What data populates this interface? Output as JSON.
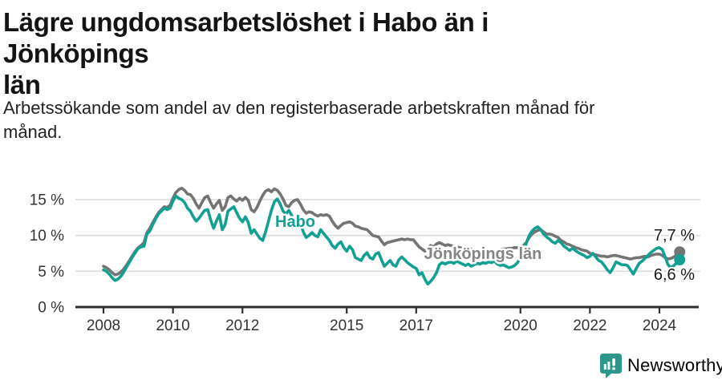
{
  "header": {
    "title": "Lägre ungdomsarbetslöshet i Habo än i Jönköpings län",
    "title_lines": [
      "Lägre ungdomsarbetslöshet i Habo än i Jönköpings",
      "län"
    ],
    "subtitle": "Arbetssökande som andel av den registerbaserade arbetskraften månad för månad.",
    "subtitle_lines": [
      "Arbetssökande som andel av den registerbaserade arbetskraften månad för",
      "månad."
    ]
  },
  "chart_data": {
    "type": "line",
    "x_unit": "month",
    "x_start": "2008-01",
    "x_end": "2024-08",
    "xticks": [
      2008,
      2010,
      2012,
      2015,
      2017,
      2020,
      2022,
      2024
    ],
    "xtick_labels": [
      "2008",
      "2010",
      "2012",
      "2015",
      "2017",
      "2020",
      "2022",
      "2024"
    ],
    "yticks": [
      0,
      5,
      10,
      15
    ],
    "ytick_labels": [
      "0 %",
      "5 %",
      "10 %",
      "15 %"
    ],
    "ylim": [
      0,
      17.5
    ],
    "grid": true,
    "legend": "inline series labels on chart, value labels at line ends",
    "series": [
      {
        "name": "Jönköpings län",
        "color": "#747474",
        "label_color": "#858585",
        "end_value": 7.7,
        "end_value_label": "7,7 %",
        "values": [
          5.7,
          5.5,
          5.2,
          4.8,
          4.5,
          4.6,
          4.9,
          5.3,
          5.9,
          6.5,
          7.2,
          7.8,
          8.3,
          8.6,
          9.0,
          10.4,
          11.0,
          11.8,
          12.5,
          13.2,
          13.6,
          14.0,
          13.9,
          14.2,
          15.2,
          16.0,
          16.4,
          16.6,
          16.3,
          15.8,
          15.7,
          15.2,
          14.4,
          13.8,
          14.6,
          15.3,
          15.5,
          14.6,
          13.8,
          14.4,
          14.9,
          13.5,
          14.0,
          15.3,
          15.5,
          15.1,
          14.8,
          15.2,
          14.9,
          15.3,
          14.9,
          13.6,
          13.3,
          13.9,
          14.8,
          15.6,
          16.2,
          16.4,
          16.1,
          16.5,
          16.3,
          15.8,
          15.1,
          14.2,
          14.0,
          14.6,
          14.9,
          15.0,
          14.4,
          13.6,
          13.1,
          13.3,
          13.2,
          12.9,
          12.7,
          12.9,
          12.8,
          12.9,
          12.7,
          12.0,
          11.4,
          11.0,
          11.4,
          11.7,
          11.8,
          11.9,
          11.7,
          11.3,
          11.2,
          11.0,
          10.9,
          10.8,
          10.4,
          10.0,
          9.9,
          9.8,
          9.2,
          8.7,
          9.0,
          9.1,
          9.2,
          9.3,
          9.4,
          9.5,
          9.4,
          9.5,
          9.4,
          9.4,
          8.9,
          8.4,
          8.1,
          7.8,
          8.2,
          8.6,
          8.4,
          8.8,
          9.0,
          8.8,
          8.6,
          8.7,
          8.6,
          8.5,
          8.4,
          8.3,
          8.2,
          8.4,
          8.3,
          8.1,
          7.9,
          7.7,
          7.5,
          7.4,
          7.4,
          7.5,
          7.6,
          7.7,
          7.9,
          8.0,
          8.1,
          8.1,
          8.2,
          8.2,
          8.3,
          8.3,
          8.4,
          8.6,
          9.0,
          9.7,
          10.2,
          10.5,
          10.7,
          10.8,
          10.5,
          10.2,
          10.2,
          10.1,
          9.9,
          9.7,
          9.3,
          9.1,
          8.8,
          8.7,
          8.5,
          8.3,
          8.2,
          8.0,
          7.9,
          7.8,
          7.5,
          7.4,
          7.3,
          7.2,
          7.1,
          7.1,
          7.0,
          7.1,
          7.2,
          7.2,
          7.1,
          7.0,
          6.9,
          6.8,
          6.7,
          6.8,
          6.9,
          6.9,
          7.0,
          7.1,
          7.0,
          7.2,
          7.3,
          7.4,
          7.4,
          7.2,
          6.9,
          6.7,
          6.8,
          7.0,
          7.3,
          7.7
        ]
      },
      {
        "name": "Habo",
        "color": "#12a093",
        "label_color": "#12a093",
        "end_value": 6.6,
        "end_value_label": "6,6 %",
        "values": [
          5.2,
          5.0,
          4.6,
          4.1,
          3.7,
          3.9,
          4.3,
          4.9,
          5.6,
          6.3,
          7.0,
          7.6,
          8.2,
          8.4,
          8.5,
          10.2,
          10.6,
          11.5,
          12.3,
          13.0,
          13.4,
          13.8,
          13.6,
          13.8,
          14.8,
          15.5,
          15.2,
          15.0,
          14.6,
          13.8,
          13.4,
          12.6,
          12.0,
          12.4,
          13.0,
          13.5,
          13.6,
          12.2,
          11.0,
          12.0,
          12.9,
          10.8,
          11.5,
          13.4,
          13.7,
          14.0,
          13.2,
          12.4,
          11.9,
          12.6,
          11.8,
          10.3,
          10.8,
          10.2,
          9.6,
          9.3,
          10.5,
          12.0,
          13.5,
          14.7,
          15.1,
          14.4,
          13.4,
          13.0,
          13.5,
          12.8,
          11.8,
          11.2,
          11.7,
          10.5,
          9.7,
          10.0,
          10.4,
          10.0,
          9.8,
          10.8,
          10.3,
          9.8,
          9.3,
          8.6,
          8.2,
          8.8,
          9.1,
          8.3,
          7.8,
          8.5,
          8.0,
          6.9,
          6.7,
          6.5,
          7.2,
          7.6,
          6.9,
          6.7,
          7.4,
          7.6,
          6.6,
          5.7,
          6.1,
          6.5,
          5.9,
          5.7,
          6.6,
          7.0,
          6.6,
          6.2,
          5.9,
          5.6,
          5.4,
          4.5,
          4.8,
          3.9,
          3.2,
          3.6,
          4.1,
          4.8,
          5.9,
          6.2,
          6.0,
          6.2,
          6.3,
          6.1,
          6.4,
          6.2,
          6.0,
          5.8,
          6.0,
          5.7,
          5.9,
          6.1,
          6.0,
          6.2,
          6.1,
          6.3,
          6.2,
          6.4,
          6.0,
          5.8,
          5.9,
          5.7,
          5.5,
          5.6,
          5.8,
          6.2,
          6.9,
          7.5,
          8.9,
          10.0,
          10.6,
          11.0,
          11.2,
          10.8,
          10.2,
          9.8,
          9.5,
          9.1,
          8.9,
          9.3,
          9.0,
          8.5,
          8.2,
          7.9,
          8.2,
          7.9,
          7.6,
          7.4,
          7.2,
          6.9,
          7.1,
          7.5,
          7.0,
          6.5,
          6.3,
          5.8,
          5.2,
          4.8,
          5.5,
          6.3,
          6.1,
          5.9,
          5.9,
          5.8,
          5.2,
          4.6,
          5.4,
          6.1,
          6.4,
          6.8,
          7.2,
          7.6,
          7.9,
          8.2,
          8.3,
          8.0,
          7.0,
          5.9,
          5.5,
          5.8,
          6.2,
          6.6
        ]
      }
    ],
    "colors": {
      "grid": "#dadada",
      "axis": "#2f2f2f",
      "tick_text": "#333333",
      "annotation_text": "#1a1a1a"
    }
  },
  "footer": {
    "brand": "Newsworthy",
    "brand_color": "#2e978b"
  }
}
